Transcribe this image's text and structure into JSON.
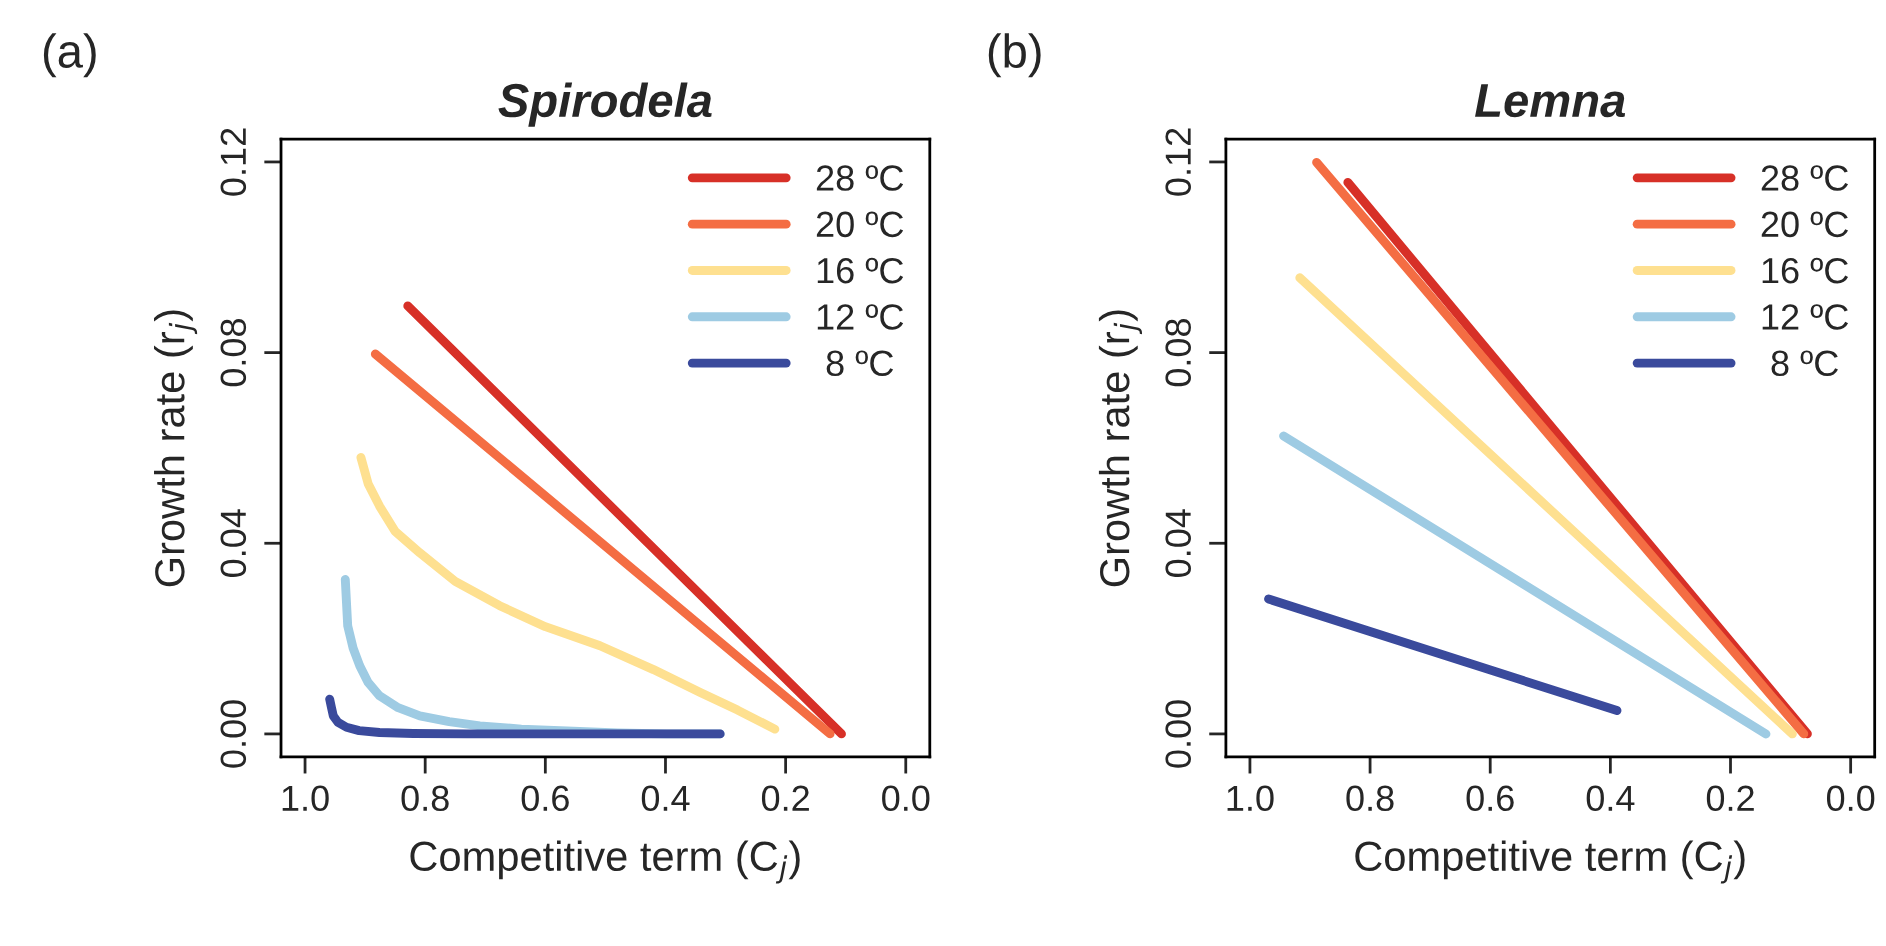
{
  "chart_data": [
    {
      "type": "line",
      "title": "Spirodela",
      "xlabel": "Competitive term (C$_{j}$)",
      "ylabel": "Growth rate (r$_{j}$)",
      "annotations": [
        "(a)"
      ],
      "legend": "top right",
      "grid": false,
      "marker": "none",
      "line_style": "solid",
      "xlim": [
        1.04,
        -0.04
      ],
      "ylim": [
        -0.0048,
        0.1248
      ],
      "xticks": [
        {
          "value": 1.0,
          "label": "1.0"
        },
        {
          "value": 0.8,
          "label": "0.8"
        },
        {
          "value": 0.6,
          "label": "0.6"
        },
        {
          "value": 0.4,
          "label": "0.4"
        },
        {
          "value": 0.2,
          "label": "0.2"
        },
        {
          "value": 0.0,
          "label": "0.0"
        }
      ],
      "yticks": [
        {
          "value": 0.0,
          "label": "0.00"
        },
        {
          "value": 0.04,
          "label": "0.04"
        },
        {
          "value": 0.08,
          "label": "0.08"
        },
        {
          "value": 0.12,
          "label": "0.12"
        }
      ],
      "series": [
        {
          "name": "28 ºC",
          "color": "#d73027",
          "x": [
            0.829,
            0.107
          ],
          "values": [
            0.0898,
            0.0
          ]
        },
        {
          "name": "20 ºC",
          "color": "#f46d43",
          "x": [
            0.883,
            0.126
          ],
          "values": [
            0.0797,
            0.0
          ]
        },
        {
          "name": "16 ºC",
          "color": "#fee090",
          "x": [
            0.907,
            0.895,
            0.876,
            0.85,
            0.809,
            0.75,
            0.676,
            0.6,
            0.509,
            0.42,
            0.342,
            0.28,
            0.218
          ],
          "values": [
            0.058,
            0.0525,
            0.0478,
            0.0425,
            0.038,
            0.032,
            0.0269,
            0.0225,
            0.0185,
            0.0135,
            0.0087,
            0.005,
            0.001
          ]
        },
        {
          "name": "12 ºC",
          "color": "#9ecbe3",
          "x": [
            0.933,
            0.931,
            0.929,
            0.92,
            0.909,
            0.895,
            0.876,
            0.845,
            0.809,
            0.76,
            0.709,
            0.64,
            0.564,
            0.48,
            0.398,
            0.309
          ],
          "values": [
            0.0324,
            0.0275,
            0.0227,
            0.018,
            0.0143,
            0.0108,
            0.008,
            0.0055,
            0.0038,
            0.0026,
            0.0017,
            0.001,
            0.0006,
            0.0002,
            0.0,
            0.0
          ]
        },
        {
          "name": " 8 ºC",
          "color": "#3a4a9c",
          "x": [
            0.959,
            0.956,
            0.953,
            0.945,
            0.931,
            0.91,
            0.876,
            0.82,
            0.731,
            0.309
          ],
          "values": [
            0.0073,
            0.0055,
            0.0038,
            0.0024,
            0.0014,
            0.0007,
            0.0003,
            0.0001,
            0.0,
            0.0
          ]
        }
      ]
    },
    {
      "type": "line",
      "title": "Lemna",
      "xlabel": "Competitive term (C$_{j}$)",
      "ylabel": "Growth rate (r$_{j}$)",
      "annotations": [
        "(b)"
      ],
      "legend": "top right",
      "grid": false,
      "marker": "none",
      "line_style": "solid",
      "xlim": [
        1.04,
        -0.04
      ],
      "ylim": [
        -0.0048,
        0.1248
      ],
      "xticks": [
        {
          "value": 1.0,
          "label": "1.0"
        },
        {
          "value": 0.8,
          "label": "0.8"
        },
        {
          "value": 0.6,
          "label": "0.6"
        },
        {
          "value": 0.4,
          "label": "0.4"
        },
        {
          "value": 0.2,
          "label": "0.2"
        },
        {
          "value": 0.0,
          "label": "0.0"
        }
      ],
      "yticks": [
        {
          "value": 0.0,
          "label": "0.00"
        },
        {
          "value": 0.04,
          "label": "0.04"
        },
        {
          "value": 0.08,
          "label": "0.08"
        },
        {
          "value": 0.12,
          "label": "0.12"
        }
      ],
      "series": [
        {
          "name": "28 ºC",
          "color": "#d73027",
          "x": [
            0.837,
            0.072
          ],
          "values": [
            0.1157,
            0.0
          ]
        },
        {
          "name": "20 ºC",
          "color": "#f46d43",
          "x": [
            0.889,
            0.078
          ],
          "values": [
            0.1199,
            0.0
          ]
        },
        {
          "name": "16 ºC",
          "color": "#fee090",
          "x": [
            0.917,
            0.097
          ],
          "values": [
            0.0957,
            0.0
          ]
        },
        {
          "name": "12 ºC",
          "color": "#9ecbe3",
          "x": [
            0.944,
            0.141
          ],
          "values": [
            0.0625,
            0.0
          ]
        },
        {
          "name": " 8 ºC",
          "color": "#3a4a9c",
          "x": [
            0.969,
            0.389
          ],
          "values": [
            0.0283,
            0.0049
          ]
        }
      ]
    }
  ]
}
